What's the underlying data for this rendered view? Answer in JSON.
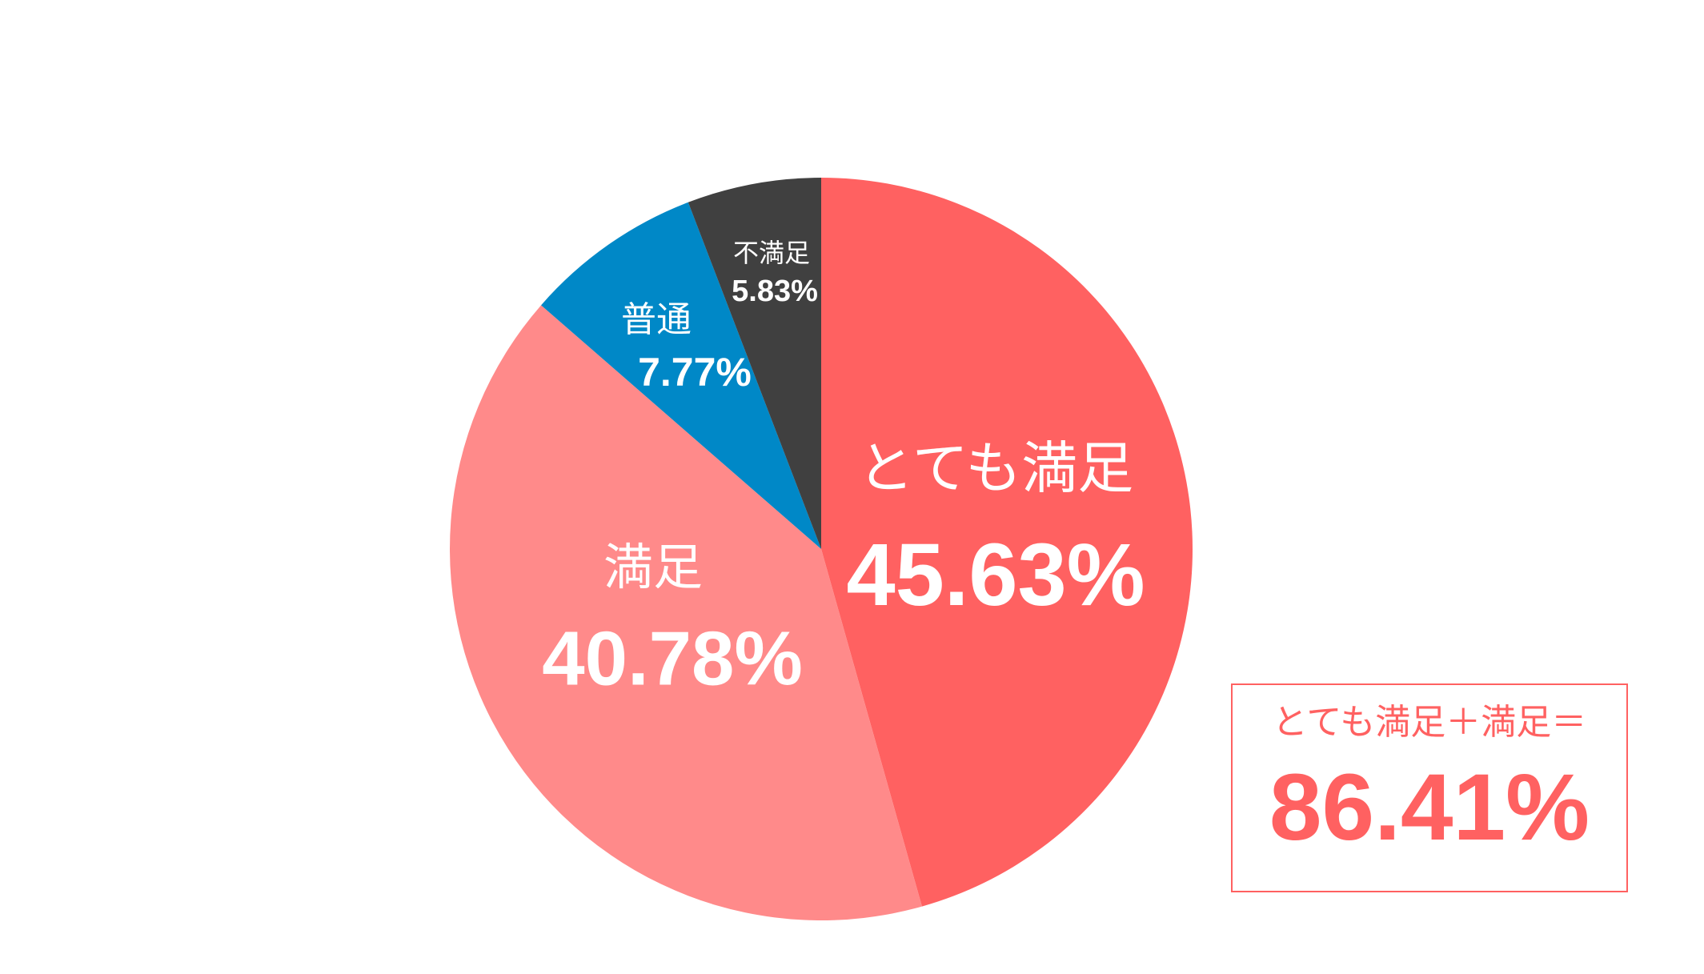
{
  "chart_data": {
    "type": "pie",
    "categories": [
      "とても満足",
      "満足",
      "普通",
      "不満足"
    ],
    "values": [
      45.63,
      40.78,
      7.77,
      5.83
    ],
    "value_labels": [
      "45.63%",
      "40.78%",
      "7.77%",
      "5.83%"
    ],
    "colors": [
      "#ff6161",
      "#ff8a8a",
      "#0088c7",
      "#404040"
    ],
    "summary": {
      "text": "とても満足＋満足＝",
      "value": 86.41,
      "value_label": "86.41%",
      "color": "#ff6161"
    }
  }
}
